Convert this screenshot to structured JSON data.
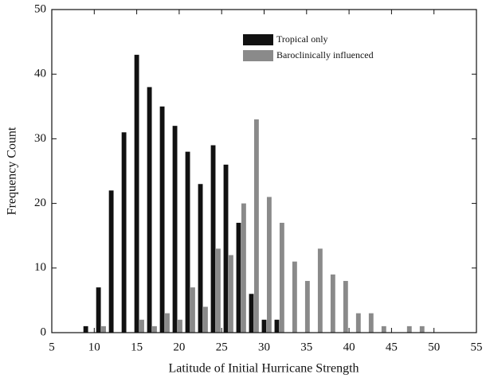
{
  "chart_data": {
    "type": "bar",
    "x_label": "Latitude of Initial Hurricane Strength",
    "y_label": "Frequency Count",
    "x": [
      9,
      10.5,
      12,
      13.5,
      15,
      16.5,
      18,
      19.5,
      21,
      22.5,
      24,
      25.5,
      27,
      28.5,
      30,
      31.5,
      33,
      34.5,
      36,
      37.5,
      39,
      40.5,
      42,
      43.5,
      45,
      46.5,
      48
    ],
    "series": [
      {
        "name": "Tropical only",
        "color": "#111111",
        "values": [
          1,
          7,
          22,
          31,
          43,
          38,
          35,
          32,
          28,
          23,
          29,
          26,
          17,
          6,
          2,
          2,
          0,
          0,
          0,
          0,
          0,
          0,
          0,
          0,
          0,
          0,
          0
        ]
      },
      {
        "name": "Baroclinically influenced",
        "color": "#8a8a8a",
        "values": [
          0,
          1,
          0,
          0,
          2,
          1,
          3,
          2,
          7,
          4,
          13,
          12,
          20,
          33,
          21,
          17,
          11,
          8,
          13,
          9,
          8,
          3,
          3,
          1,
          0,
          1,
          1
        ]
      }
    ],
    "xlim": [
      5,
      55
    ],
    "xticks": [
      5,
      10,
      15,
      20,
      25,
      30,
      35,
      40,
      45,
      50,
      55
    ],
    "ylim": [
      0,
      50
    ],
    "yticks": [
      0,
      10,
      20,
      30,
      40,
      50
    ],
    "legend": "upper-right"
  }
}
